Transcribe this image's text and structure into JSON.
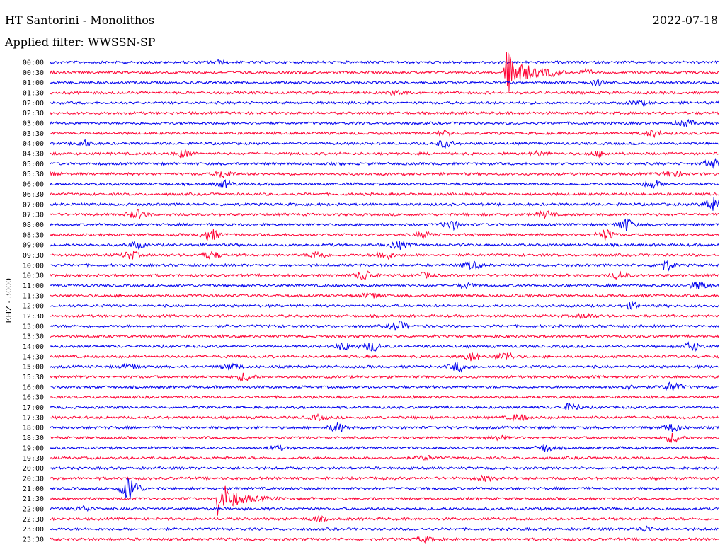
{
  "header": {
    "station": "HT Santorini - Monolithos",
    "date": "2022-07-18",
    "filter_label": "Applied filter: WWSSN-SP"
  },
  "chart_data": {
    "type": "line",
    "title": "HT Santorini - Monolithos",
    "date": "2022-07-18",
    "filter": "WWSSN-SP",
    "ylabel": "EHZ - 3000",
    "trace_colors": [
      "#0000ee",
      "#ff0033"
    ],
    "grid": false,
    "rows": [
      {
        "label": "00:00",
        "events": [
          {
            "t": 0.25,
            "amp": 2
          }
        ]
      },
      {
        "label": "00:30",
        "events": [
          {
            "t": 0.68,
            "amp": 35,
            "type": "quake"
          },
          {
            "t": 0.75,
            "amp": 3
          },
          {
            "t": 0.8,
            "amp": 3
          }
        ]
      },
      {
        "label": "01:00",
        "events": [
          {
            "t": 0.82,
            "amp": 3
          }
        ]
      },
      {
        "label": "01:30",
        "events": [
          {
            "t": 0.52,
            "amp": 3
          }
        ]
      },
      {
        "label": "02:00",
        "events": [
          {
            "t": 0.88,
            "amp": 3
          }
        ]
      },
      {
        "label": "02:30",
        "events": []
      },
      {
        "label": "03:00",
        "events": [
          {
            "t": 0.95,
            "amp": 4
          }
        ]
      },
      {
        "label": "03:30",
        "events": [
          {
            "t": 0.9,
            "amp": 4
          },
          {
            "t": 0.59,
            "amp": 3
          }
        ]
      },
      {
        "label": "04:00",
        "events": [
          {
            "t": 0.05,
            "amp": 4
          },
          {
            "t": 0.59,
            "amp": 5
          }
        ]
      },
      {
        "label": "04:30",
        "events": [
          {
            "t": 0.2,
            "amp": 5
          },
          {
            "t": 0.73,
            "amp": 3
          },
          {
            "t": 0.82,
            "amp": 3
          }
        ]
      },
      {
        "label": "05:00",
        "events": [
          {
            "t": 0.99,
            "amp": 6
          }
        ]
      },
      {
        "label": "05:30",
        "events": [
          {
            "t": 0.0,
            "amp": 3
          },
          {
            "t": 0.26,
            "amp": 5
          },
          {
            "t": 0.93,
            "amp": 4
          }
        ]
      },
      {
        "label": "06:00",
        "events": [
          {
            "t": 0.26,
            "amp": 4
          },
          {
            "t": 0.9,
            "amp": 5
          }
        ]
      },
      {
        "label": "06:30",
        "events": []
      },
      {
        "label": "07:00",
        "events": [
          {
            "t": 0.99,
            "amp": 10
          }
        ]
      },
      {
        "label": "07:30",
        "events": [
          {
            "t": 0.13,
            "amp": 6
          },
          {
            "t": 0.74,
            "amp": 4
          }
        ]
      },
      {
        "label": "08:00",
        "events": [
          {
            "t": 0.6,
            "amp": 6
          },
          {
            "t": 0.86,
            "amp": 8
          }
        ]
      },
      {
        "label": "08:30",
        "events": [
          {
            "t": 0.24,
            "amp": 7
          },
          {
            "t": 0.83,
            "amp": 7
          },
          {
            "t": 0.56,
            "amp": 4
          }
        ]
      },
      {
        "label": "09:00",
        "events": [
          {
            "t": 0.13,
            "amp": 4
          },
          {
            "t": 0.52,
            "amp": 5
          }
        ]
      },
      {
        "label": "09:30",
        "events": [
          {
            "t": 0.12,
            "amp": 5
          },
          {
            "t": 0.24,
            "amp": 5
          },
          {
            "t": 0.4,
            "amp": 5
          },
          {
            "t": 0.5,
            "amp": 5
          }
        ]
      },
      {
        "label": "10:00",
        "events": [
          {
            "t": 0.63,
            "amp": 5
          },
          {
            "t": 0.92,
            "amp": 6
          }
        ]
      },
      {
        "label": "10:30",
        "events": [
          {
            "t": 0.47,
            "amp": 7
          },
          {
            "t": 0.56,
            "amp": 3
          },
          {
            "t": 0.85,
            "amp": 4
          }
        ]
      },
      {
        "label": "11:00",
        "events": [
          {
            "t": 0.97,
            "amp": 5
          },
          {
            "t": 0.62,
            "amp": 3
          }
        ]
      },
      {
        "label": "11:30",
        "events": [
          {
            "t": 0.48,
            "amp": 4
          }
        ]
      },
      {
        "label": "12:00",
        "events": [
          {
            "t": 0.87,
            "amp": 4
          }
        ]
      },
      {
        "label": "12:30",
        "events": [
          {
            "t": 0.8,
            "amp": 3
          }
        ]
      },
      {
        "label": "13:00",
        "events": [
          {
            "t": 0.52,
            "amp": 6
          }
        ]
      },
      {
        "label": "13:30",
        "events": []
      },
      {
        "label": "14:00",
        "events": [
          {
            "t": 0.44,
            "amp": 5
          },
          {
            "t": 0.48,
            "amp": 6
          },
          {
            "t": 0.96,
            "amp": 6
          }
        ]
      },
      {
        "label": "14:30",
        "events": [
          {
            "t": 0.63,
            "amp": 5
          },
          {
            "t": 0.68,
            "amp": 6
          }
        ]
      },
      {
        "label": "15:00",
        "events": [
          {
            "t": 0.12,
            "amp": 3
          },
          {
            "t": 0.27,
            "amp": 4
          },
          {
            "t": 0.61,
            "amp": 6
          }
        ]
      },
      {
        "label": "15:30",
        "events": [
          {
            "t": 0.29,
            "amp": 5
          }
        ]
      },
      {
        "label": "16:00",
        "events": [
          {
            "t": 0.93,
            "amp": 6
          },
          {
            "t": 0.86,
            "amp": 3
          }
        ]
      },
      {
        "label": "16:30",
        "events": []
      },
      {
        "label": "17:00",
        "events": [
          {
            "t": 0.78,
            "amp": 5
          }
        ]
      },
      {
        "label": "17:30",
        "events": [
          {
            "t": 0.7,
            "amp": 4
          },
          {
            "t": 0.4,
            "amp": 3
          }
        ]
      },
      {
        "label": "18:00",
        "events": [
          {
            "t": 0.43,
            "amp": 6
          },
          {
            "t": 0.93,
            "amp": 5
          }
        ]
      },
      {
        "label": "18:30",
        "events": [
          {
            "t": 0.93,
            "amp": 6
          },
          {
            "t": 0.67,
            "amp": 3
          }
        ]
      },
      {
        "label": "19:00",
        "events": [
          {
            "t": 0.74,
            "amp": 5
          },
          {
            "t": 0.34,
            "amp": 3
          }
        ]
      },
      {
        "label": "19:30",
        "events": [
          {
            "t": 0.56,
            "amp": 3
          }
        ]
      },
      {
        "label": "20:00",
        "events": []
      },
      {
        "label": "20:30",
        "events": [
          {
            "t": 0.65,
            "amp": 3
          }
        ]
      },
      {
        "label": "21:00",
        "events": [
          {
            "t": 0.12,
            "amp": 18
          }
        ]
      },
      {
        "label": "21:30",
        "events": [
          {
            "t": 0.25,
            "amp": 28,
            "type": "quake"
          }
        ]
      },
      {
        "label": "22:00",
        "events": [
          {
            "t": 0.05,
            "amp": 3
          }
        ]
      },
      {
        "label": "22:30",
        "events": [
          {
            "t": 0.4,
            "amp": 3
          }
        ]
      },
      {
        "label": "23:00",
        "events": [
          {
            "t": 0.89,
            "amp": 3
          }
        ]
      },
      {
        "label": "23:30",
        "events": [
          {
            "t": 0.56,
            "amp": 3
          }
        ]
      }
    ]
  }
}
